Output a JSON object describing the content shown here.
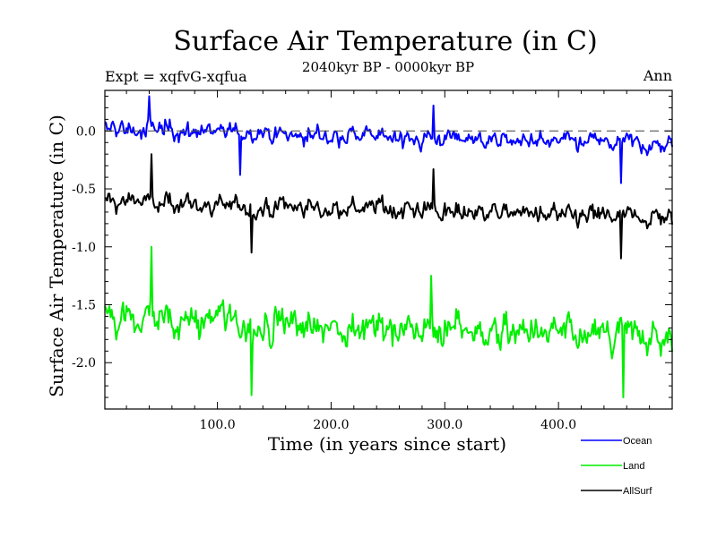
{
  "chart_data": {
    "type": "line",
    "title": "Surface Air Temperature (in C)",
    "subtitle": "2040kyr BP - 0000kyr BP",
    "left_label": "Expt = xqfvG-xqfua",
    "right_label": "Ann",
    "xlabel": "Time (in years since start)",
    "ylabel": "Surface Air Temperature (in C)",
    "xlim": [
      1,
      500
    ],
    "ylim": [
      -2.4,
      0.35
    ],
    "xticks": [
      100,
      200,
      300,
      400
    ],
    "xtick_labels": [
      "100.0",
      "200.0",
      "300.0",
      "400.0"
    ],
    "yticks": [
      0.0,
      -0.5,
      -1.0,
      -1.5,
      -2.0
    ],
    "ytick_labels": [
      "0.0",
      "-0.5",
      "-1.0",
      "-1.5",
      "-2.0"
    ],
    "reference_line": {
      "y": 0.0,
      "style": "dashed"
    },
    "legend_position": "bottom-right",
    "series": [
      {
        "name": "Ocean",
        "color": "#0000ff",
        "approx_mean": -0.05,
        "approx_sd": 0.11,
        "approx_trend_per_500yr": -0.14,
        "peaks": [
          {
            "x": 40,
            "y": 0.3
          },
          {
            "x": 290,
            "y": 0.22
          }
        ],
        "troughs": [
          {
            "x": 120,
            "y": -0.38
          },
          {
            "x": 455,
            "y": -0.45
          }
        ]
      },
      {
        "name": "Land",
        "color": "#00ee00",
        "approx_mean": -1.7,
        "approx_sd": 0.2,
        "approx_trend_per_500yr": -0.18,
        "peaks": [
          {
            "x": 42,
            "y": -1.0
          },
          {
            "x": 288,
            "y": -1.25
          }
        ],
        "troughs": [
          {
            "x": 130,
            "y": -2.28
          },
          {
            "x": 457,
            "y": -2.3
          }
        ]
      },
      {
        "name": "AllSurf",
        "color": "#000000",
        "approx_mean": -0.68,
        "approx_sd": 0.12,
        "approx_trend_per_500yr": -0.15,
        "peaks": [
          {
            "x": 42,
            "y": -0.2
          },
          {
            "x": 290,
            "y": -0.33
          }
        ],
        "troughs": [
          {
            "x": 130,
            "y": -1.05
          },
          {
            "x": 455,
            "y": -1.1
          }
        ]
      }
    ]
  }
}
